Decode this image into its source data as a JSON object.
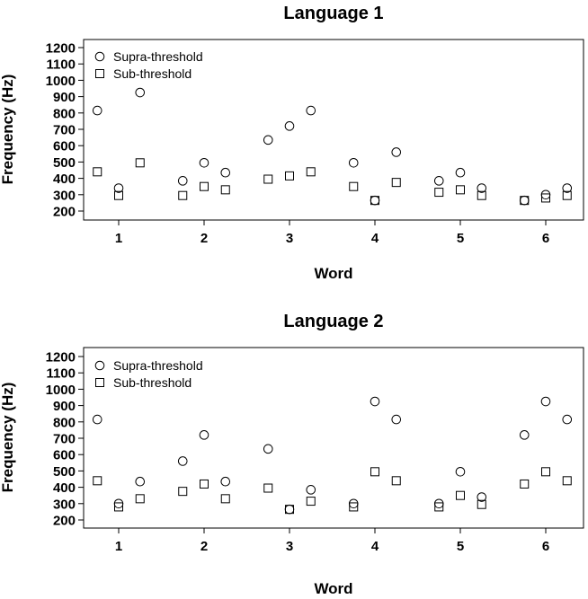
{
  "chart_data": [
    {
      "type": "scatter",
      "title": "Language 1",
      "xlabel": "Word",
      "ylabel": "Frequency (Hz)",
      "xlim": [
        0.6,
        6.4
      ],
      "ylim": [
        200,
        1200
      ],
      "xticks": [
        1,
        2,
        3,
        4,
        5,
        6
      ],
      "yticks": [
        200,
        300,
        400,
        500,
        600,
        700,
        800,
        900,
        1000,
        1100,
        1200
      ],
      "legend_position": "top-left",
      "grid": false,
      "series": [
        {
          "name": "Supra-threshold",
          "marker": "circle",
          "x": [
            0.75,
            1.0,
            1.25,
            1.75,
            2.0,
            2.25,
            2.75,
            3.0,
            3.25,
            3.75,
            4.0,
            4.25,
            4.75,
            5.0,
            5.25,
            5.75,
            6.0,
            6.25
          ],
          "y": [
            815,
            340,
            925,
            385,
            495,
            435,
            635,
            720,
            815,
            495,
            265,
            560,
            385,
            435,
            340,
            265,
            300,
            340
          ]
        },
        {
          "name": "Sub-threshold",
          "marker": "square",
          "x": [
            0.75,
            1.0,
            1.25,
            1.75,
            2.0,
            2.25,
            2.75,
            3.0,
            3.25,
            3.75,
            4.0,
            4.25,
            4.75,
            5.0,
            5.25,
            5.75,
            6.0,
            6.25
          ],
          "y": [
            440,
            295,
            495,
            295,
            350,
            330,
            395,
            415,
            440,
            350,
            265,
            375,
            315,
            330,
            295,
            265,
            280,
            295
          ]
        }
      ]
    },
    {
      "type": "scatter",
      "title": "Language 2",
      "xlabel": "Word",
      "ylabel": "Frequency (Hz)",
      "xlim": [
        0.6,
        6.4
      ],
      "ylim": [
        200,
        1200
      ],
      "xticks": [
        1,
        2,
        3,
        4,
        5,
        6
      ],
      "yticks": [
        200,
        300,
        400,
        500,
        600,
        700,
        800,
        900,
        1000,
        1100,
        1200
      ],
      "legend_position": "top-left",
      "grid": false,
      "series": [
        {
          "name": "Supra-threshold",
          "marker": "circle",
          "x": [
            0.75,
            1.0,
            1.25,
            1.75,
            2.0,
            2.25,
            2.75,
            3.0,
            3.25,
            3.75,
            4.0,
            4.25,
            4.75,
            5.0,
            5.25,
            5.75,
            6.0,
            6.25
          ],
          "y": [
            815,
            300,
            435,
            560,
            720,
            435,
            635,
            265,
            385,
            300,
            925,
            815,
            300,
            495,
            340,
            720,
            925,
            815
          ]
        },
        {
          "name": "Sub-threshold",
          "marker": "square",
          "x": [
            0.75,
            1.0,
            1.25,
            1.75,
            2.0,
            2.25,
            2.75,
            3.0,
            3.25,
            3.75,
            4.0,
            4.25,
            4.75,
            5.0,
            5.25,
            5.75,
            6.0,
            6.25
          ],
          "y": [
            440,
            280,
            330,
            375,
            420,
            330,
            395,
            265,
            315,
            280,
            495,
            440,
            280,
            350,
            295,
            420,
            495,
            440
          ]
        }
      ]
    }
  ]
}
